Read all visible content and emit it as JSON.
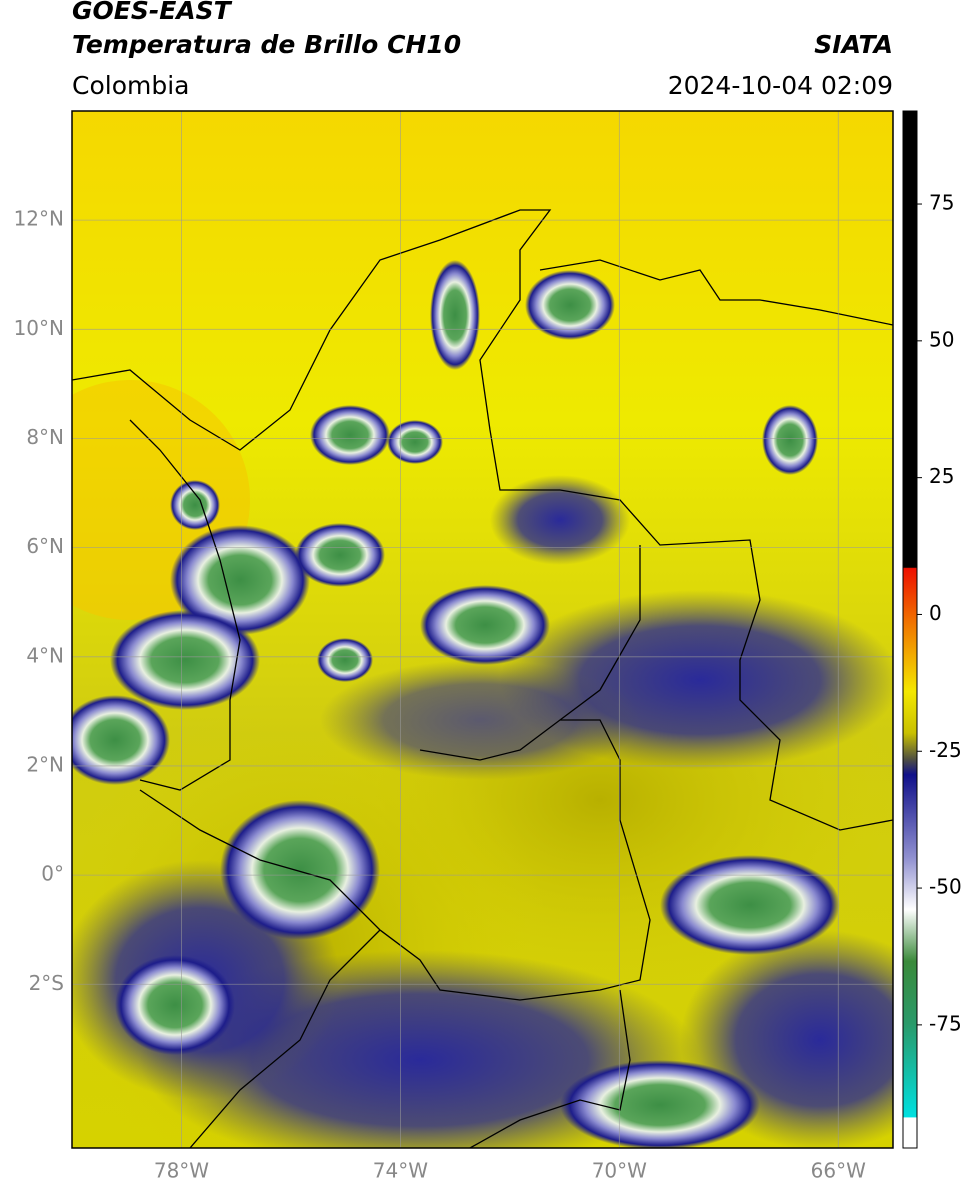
{
  "header": {
    "title_line1": "GOES-EAST",
    "title_line2": "Temperatura de Brillo CH10",
    "source": "SIATA",
    "region": "Colombia",
    "datetime": "2024-10-04 02:09"
  },
  "map": {
    "lon_range": [
      -80,
      -65
    ],
    "lat_range": [
      -5,
      14
    ],
    "lat_ticks": [
      {
        "value": 12,
        "label": "12°N"
      },
      {
        "value": 10,
        "label": "10°N"
      },
      {
        "value": 8,
        "label": "8°N"
      },
      {
        "value": 6,
        "label": "6°N"
      },
      {
        "value": 4,
        "label": "4°N"
      },
      {
        "value": 2,
        "label": "2°N"
      },
      {
        "value": 0,
        "label": "0°"
      },
      {
        "value": -2,
        "label": "2°S"
      }
    ],
    "lon_ticks": [
      {
        "value": -78,
        "label": "78°W"
      },
      {
        "value": -74,
        "label": "74°W"
      },
      {
        "value": -70,
        "label": "70°W"
      },
      {
        "value": -66,
        "label": "66°W"
      }
    ]
  },
  "colorbar": {
    "range": [
      -97.5,
      92
    ],
    "ticks": [
      75,
      50,
      25,
      0,
      -25,
      -50,
      -75
    ]
  }
}
